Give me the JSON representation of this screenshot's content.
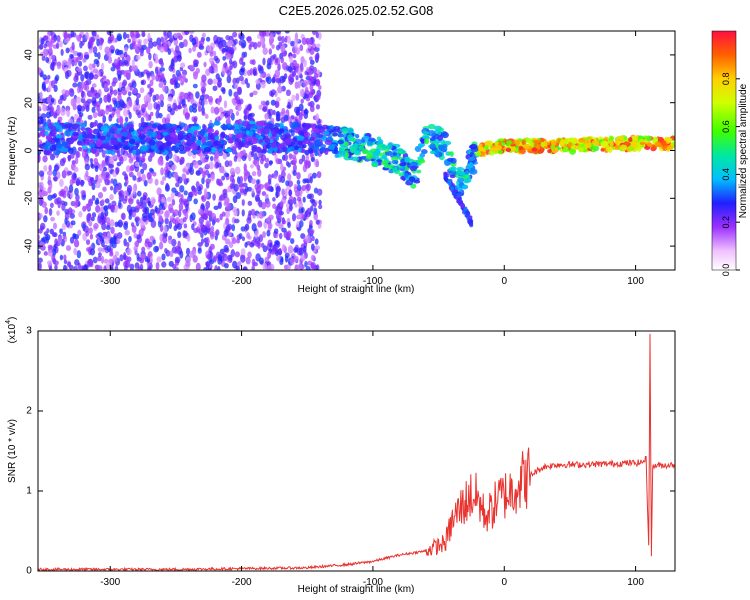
{
  "title": "C2E5.2026.025.02.52.G08",
  "chart_data": [
    {
      "type": "heatmap",
      "xlabel": "Height of straight line (km)",
      "ylabel": "Frequency (Hz)",
      "xlim": [
        -355,
        130
      ],
      "ylim": [
        -50,
        50
      ],
      "x_ticks": [
        -300,
        -200,
        -100,
        0,
        100
      ],
      "y_ticks": [
        -40,
        -20,
        0,
        20,
        40
      ],
      "colorbar": {
        "label": "Normalized spectral amplitude",
        "range": [
          0,
          1
        ],
        "ticks": [
          0.0,
          0.2,
          0.4,
          0.6,
          0.8
        ]
      },
      "ridge": [
        {
          "x": -355,
          "y": 5
        },
        {
          "x": -300,
          "y": 5
        },
        {
          "x": -250,
          "y": 5
        },
        {
          "x": -200,
          "y": 6
        },
        {
          "x": -150,
          "y": 5
        },
        {
          "x": -120,
          "y": 3
        },
        {
          "x": -100,
          "y": 0
        },
        {
          "x": -80,
          "y": -4
        },
        {
          "x": -68,
          "y": -10
        },
        {
          "x": -60,
          "y": 6
        },
        {
          "x": -45,
          "y": 2
        },
        {
          "x": -35,
          "y": -15
        },
        {
          "x": -20,
          "y": 0
        },
        {
          "x": 0,
          "y": 2
        },
        {
          "x": 50,
          "y": 2
        },
        {
          "x": 100,
          "y": 3
        },
        {
          "x": 130,
          "y": 3
        }
      ]
    },
    {
      "type": "line",
      "xlabel": "Height of straight line (km)",
      "ylabel": "SNR (10 * v/v)",
      "y_multiplier": "(x10",
      "y_multiplier_exp": "4",
      "xlim": [
        -355,
        130
      ],
      "ylim": [
        0,
        3
      ],
      "x_ticks": [
        -300,
        -200,
        -100,
        0,
        100
      ],
      "y_ticks": [
        0,
        1,
        2,
        3
      ],
      "line_color": "#e8332f",
      "series": [
        {
          "x": [
            -355,
            -300,
            -250,
            -200,
            -150,
            -120,
            -100,
            -80,
            -60,
            -45,
            -40,
            -35,
            -30,
            -25,
            -20,
            -15,
            -10,
            -5,
            0,
            5,
            10,
            15,
            20,
            30,
            40,
            50,
            60,
            80,
            95,
            100,
            105,
            108,
            110,
            111,
            112,
            113,
            115,
            120,
            130
          ],
          "values": [
            0.02,
            0.02,
            0.02,
            0.03,
            0.04,
            0.08,
            0.12,
            0.2,
            0.25,
            0.35,
            0.6,
            0.75,
            0.85,
            0.95,
            0.9,
            0.7,
            0.75,
            0.9,
            0.95,
            1.0,
            1.1,
            1.15,
            1.2,
            1.3,
            1.33,
            1.33,
            1.33,
            1.34,
            1.35,
            1.35,
            1.36,
            1.4,
            0.3,
            3.0,
            0.15,
            1.3,
            1.32,
            1.32,
            1.33
          ]
        }
      ]
    }
  ]
}
